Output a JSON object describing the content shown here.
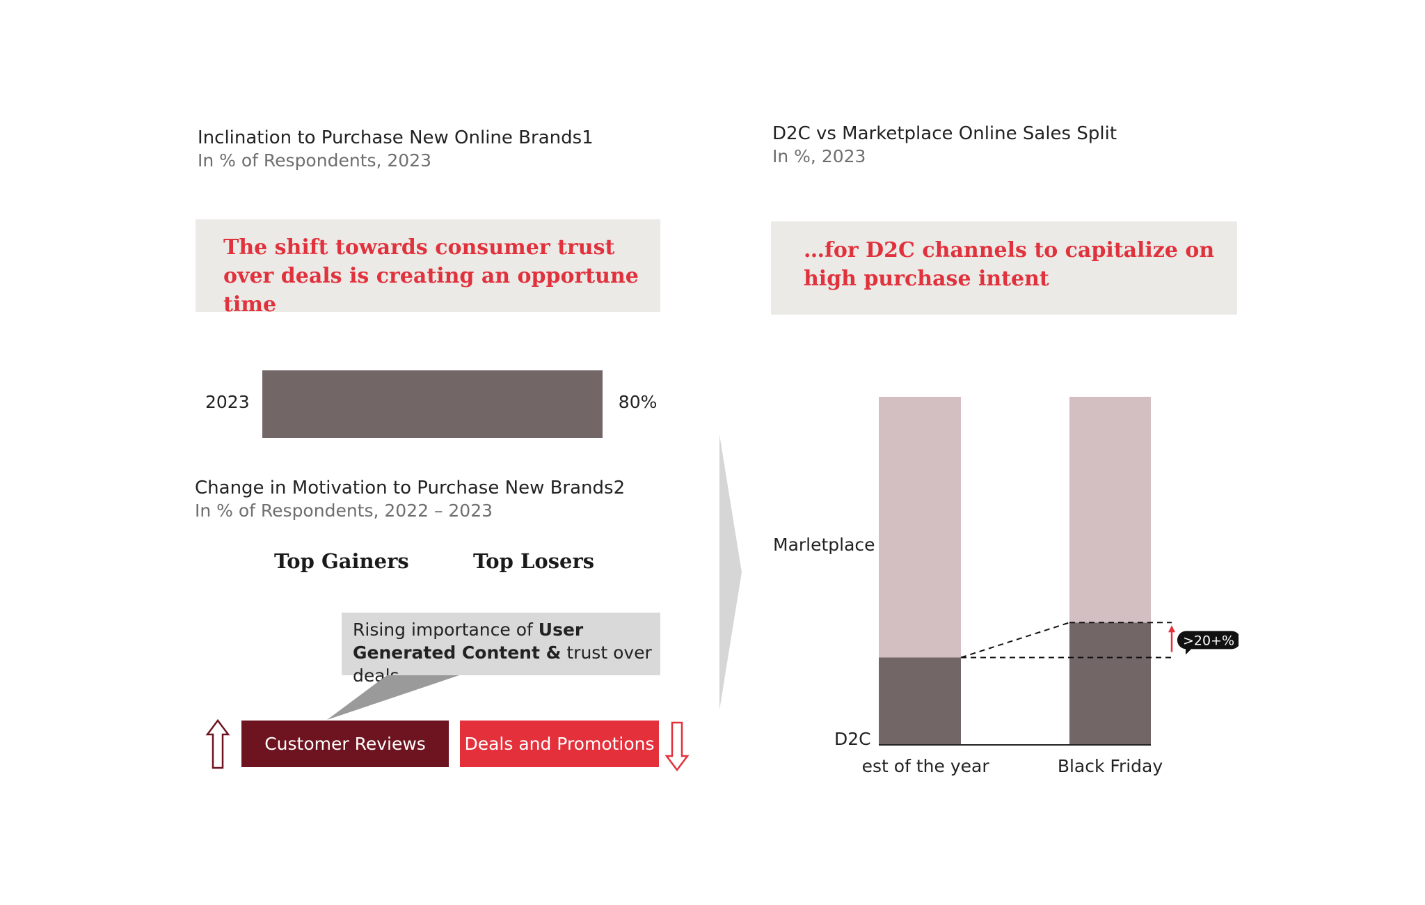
{
  "left": {
    "chart1": {
      "title": "Inclination to Purchase New Online Brands1",
      "subtitle": "In % of Respondents, 2023",
      "callout": "The shift towards consumer trust over deals is creating an opportune time"
    },
    "chart2": {
      "title": "Change in Motivation to Purchase New Brands2",
      "subtitle": "In % of Respondents, 2022 – 2023",
      "gainers_heading": "Top Gainers",
      "losers_heading": "Top Losers",
      "tooltip": {
        "part1": "Rising importance of ",
        "bold": "User Generated Content &",
        "part2": " trust over deals"
      },
      "gainer_item": "Customer Reviews",
      "loser_item": "Deals and Promotions"
    }
  },
  "right": {
    "title": "D2C vs Marketplace Online Sales Split",
    "subtitle": "In %, 2023",
    "callout": "…for D2C channels to capitalize on high purchase intent",
    "marketplace_label": "Marletplace",
    "d2c_label": "D2C",
    "change_badge": ">20+%"
  },
  "colors": {
    "callout_bg": "#eceae7",
    "callout_text": "#e0323c",
    "bar_dark": "#726667",
    "bar_light": "#d3bfc1",
    "gainer_red": "#6d1420",
    "loser_red": "#e4303b",
    "tooltip_bg": "#d9d9d9"
  },
  "icons": {
    "gainer": "arrow-up-outline-icon",
    "loser": "arrow-down-outline-icon",
    "increase": "arrow-up-icon",
    "divider": "chevron-right-icon"
  },
  "chart_data": [
    {
      "type": "bar",
      "orientation": "horizontal",
      "categories": [
        "2023"
      ],
      "values": [
        80
      ],
      "value_labels": [
        "80%"
      ],
      "xlim": [
        0,
        100
      ]
    },
    {
      "type": "bar",
      "stacked": true,
      "categories": [
        "Rest of the year",
        "Black Friday"
      ],
      "series": [
        {
          "name": "D2C",
          "values": [
            25,
            35
          ]
        },
        {
          "name": "Marletplace",
          "values": [
            75,
            65
          ]
        }
      ],
      "ylim": [
        0,
        100
      ],
      "annotation": ">20+%"
    }
  ]
}
